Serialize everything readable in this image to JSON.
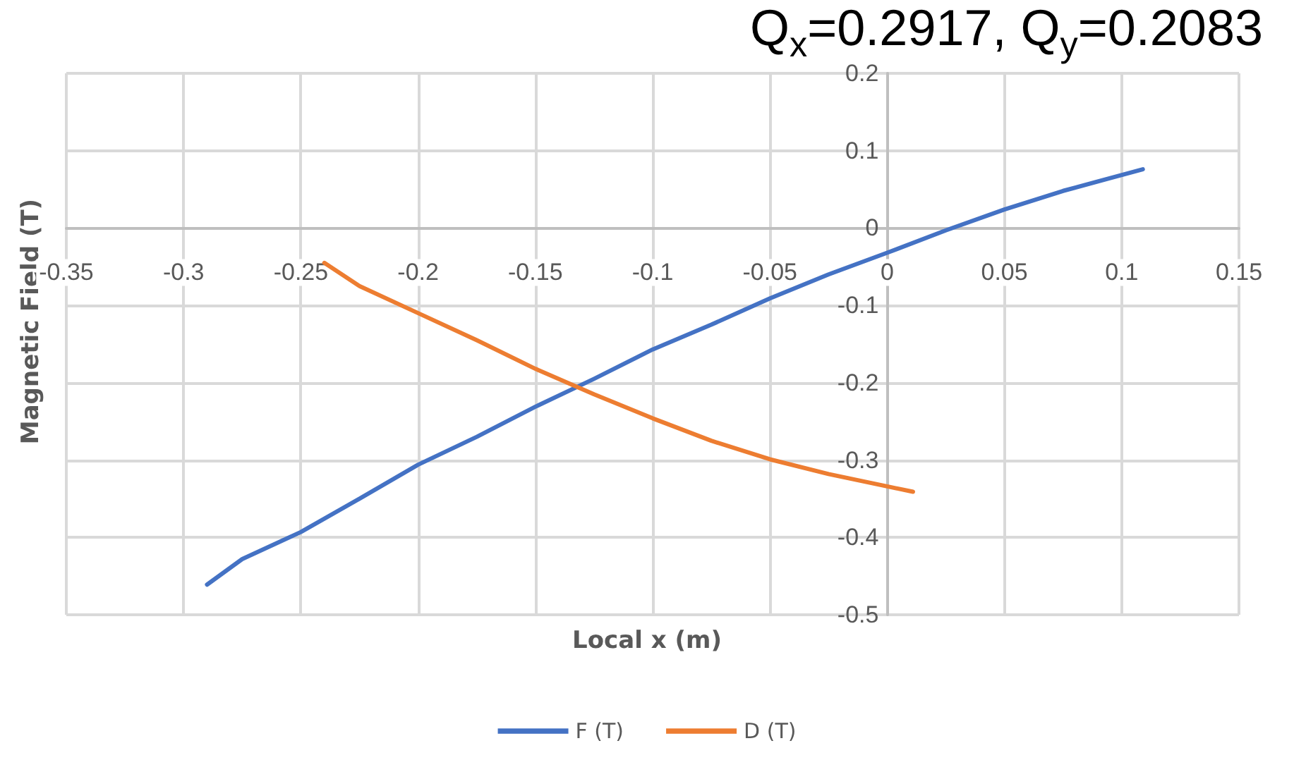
{
  "chart_data": {
    "type": "line",
    "title": "Q$_{x}$=0.2917, Q$_{y}$=0.2083",
    "xlabel": "Local x (m)",
    "ylabel": "Magnetic Field (T)",
    "series": [
      {
        "name": "F (T)",
        "color": "#4472c4",
        "x": [
          -0.29,
          -0.275,
          -0.25,
          -0.225,
          -0.2,
          -0.175,
          -0.15,
          -0.125,
          -0.1,
          -0.075,
          -0.05,
          -0.025,
          0,
          0.025,
          0.05,
          0.075,
          0.109
        ],
        "values": [
          -0.461,
          -0.428,
          -0.393,
          -0.35,
          -0.306,
          -0.27,
          -0.231,
          -0.195,
          -0.157,
          -0.125,
          -0.091,
          -0.06,
          -0.032,
          -0.003,
          0.024,
          0.048,
          0.076
        ]
      },
      {
        "name": "D (T)",
        "color": "#ed7d31",
        "x": [
          -0.24,
          -0.225,
          -0.2,
          -0.175,
          -0.15,
          -0.125,
          -0.1,
          -0.075,
          -0.05,
          -0.025,
          0,
          0.011
        ],
        "values": [
          -0.045,
          -0.075,
          -0.11,
          -0.145,
          -0.182,
          -0.215,
          -0.246,
          -0.275,
          -0.299,
          -0.318,
          -0.334,
          -0.341
        ]
      }
    ],
    "xlim": [
      -0.35,
      0.15
    ],
    "xticks": [
      -0.35,
      -0.3,
      -0.25,
      -0.2,
      -0.15,
      -0.1,
      -0.05,
      0,
      0.05,
      0.1,
      0.15
    ],
    "ylim": [
      -0.5,
      0.2
    ],
    "yticks": [
      -0.5,
      -0.4,
      -0.3,
      -0.2,
      -0.1,
      0,
      0.1,
      0.2
    ],
    "grid": true,
    "legend": "bottom",
    "marker": "none",
    "line_style": "solid"
  }
}
